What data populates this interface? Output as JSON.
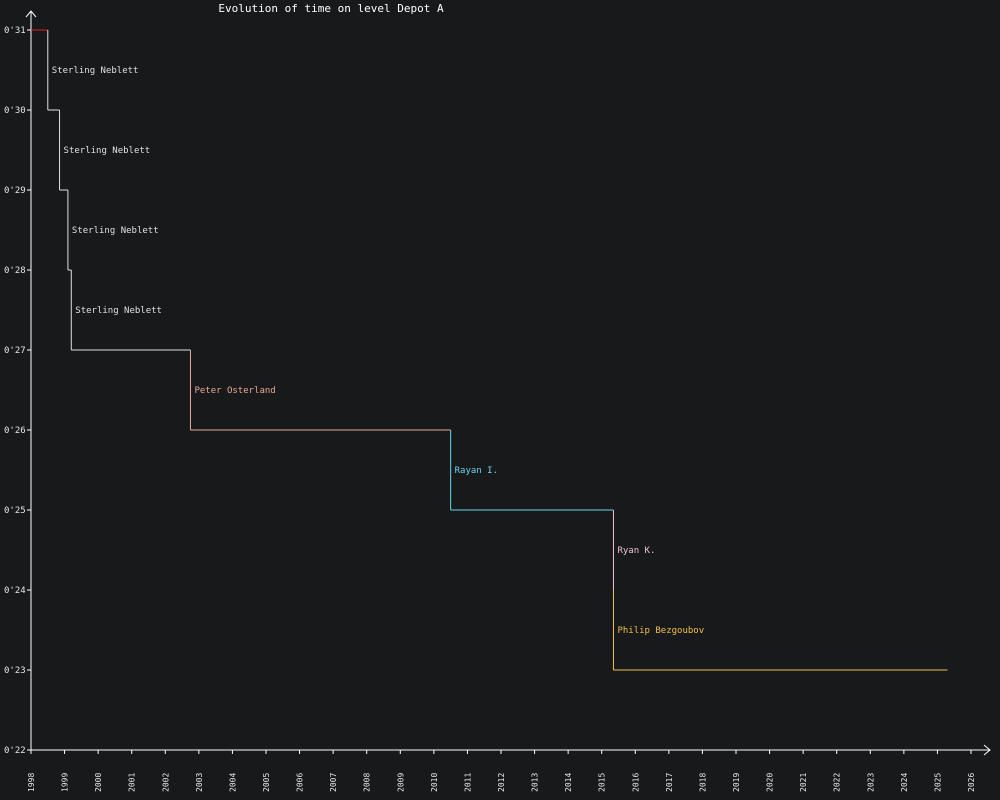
{
  "chart_data": {
    "type": "line",
    "title": "Evolution of time on level Depot A",
    "xlabel": "",
    "ylabel": "",
    "x_range": [
      1998,
      2026
    ],
    "y_range": [
      22,
      31
    ],
    "x_ticks": [
      "1998",
      "1999",
      "2000",
      "2001",
      "2002",
      "2003",
      "2004",
      "2005",
      "2006",
      "2007",
      "2008",
      "2009",
      "2010",
      "2011",
      "2012",
      "2013",
      "2014",
      "2015",
      "2016",
      "2017",
      "2018",
      "2019",
      "2020",
      "2021",
      "2022",
      "2023",
      "2024",
      "2025",
      "2026"
    ],
    "y_ticks": [
      {
        "value": 31,
        "label": "0'31"
      },
      {
        "value": 30,
        "label": "0'30"
      },
      {
        "value": 29,
        "label": "0'29"
      },
      {
        "value": 28,
        "label": "0'28"
      },
      {
        "value": 27,
        "label": "0'27"
      },
      {
        "value": 26,
        "label": "0'26"
      },
      {
        "value": 25,
        "label": "0'25"
      },
      {
        "value": 24,
        "label": "0'24"
      },
      {
        "value": 23,
        "label": "0'23"
      },
      {
        "value": 22,
        "label": "0'22"
      }
    ],
    "grid": false,
    "background": "#18191b",
    "initial_segment": {
      "x_start": 1998.0,
      "x_end": 1998.5,
      "value": 31,
      "color": "#e02020"
    },
    "end_x": 2025.3,
    "records": [
      {
        "holder": "Sterling Neblett",
        "date": 1998.5,
        "from": 31,
        "to": 30,
        "color": "#e0e0e0"
      },
      {
        "holder": "Sterling Neblett",
        "date": 1998.85,
        "from": 30,
        "to": 29,
        "color": "#e0e0e0"
      },
      {
        "holder": "Sterling Neblett",
        "date": 1999.1,
        "from": 29,
        "to": 28,
        "color": "#e0e0e0"
      },
      {
        "holder": "Sterling Neblett",
        "date": 1999.2,
        "from": 28,
        "to": 27,
        "color": "#e0e0e0"
      },
      {
        "holder": "Peter Osterland",
        "date": 2002.75,
        "from": 27,
        "to": 26,
        "color": "#e8a898"
      },
      {
        "holder": "Rayan I.",
        "date": 2010.5,
        "from": 26,
        "to": 25,
        "color": "#6ad4ec"
      },
      {
        "holder": "Ryan K.",
        "date": 2015.35,
        "from": 25,
        "to": 24,
        "color": "#f0c0d8"
      },
      {
        "holder": "Philip Bezgoubov",
        "date": 2015.35,
        "from": 24,
        "to": 23,
        "color": "#f0c050"
      }
    ]
  }
}
